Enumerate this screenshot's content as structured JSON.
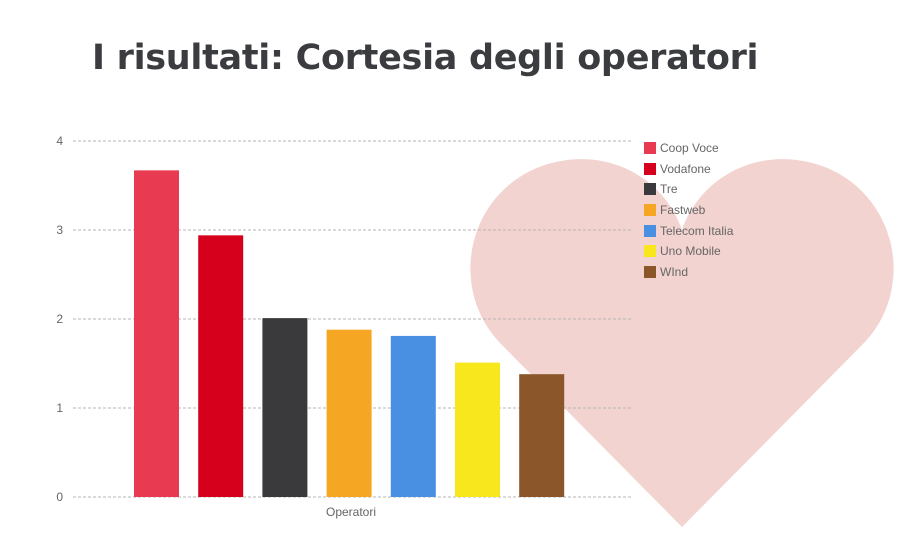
{
  "page": {
    "title": "I risultati: Cortesia degli operatori"
  },
  "decor": {
    "heart_color": "#f2d3d0"
  },
  "chart_data": {
    "type": "bar",
    "title": "",
    "xlabel": "Operatori",
    "ylabel": "",
    "ylim": [
      0,
      4
    ],
    "yticks": [
      0,
      1,
      2,
      3,
      4
    ],
    "grid": true,
    "legend_position": "right",
    "categories": [
      "Operatori"
    ],
    "series": [
      {
        "name": "Coop Voce",
        "values": [
          3.67
        ],
        "color": "#e83a50"
      },
      {
        "name": "Vodafone",
        "values": [
          2.94
        ],
        "color": "#d6001c"
      },
      {
        "name": "Tre",
        "values": [
          2.01
        ],
        "color": "#3a3a3c"
      },
      {
        "name": "Fastweb",
        "values": [
          1.88
        ],
        "color": "#f5a623"
      },
      {
        "name": "Telecom Italia",
        "values": [
          1.81
        ],
        "color": "#4a90e2"
      },
      {
        "name": "Uno Mobile",
        "values": [
          1.51
        ],
        "color": "#f8e71c"
      },
      {
        "name": "WInd",
        "values": [
          1.38
        ],
        "color": "#8b572a"
      }
    ]
  }
}
